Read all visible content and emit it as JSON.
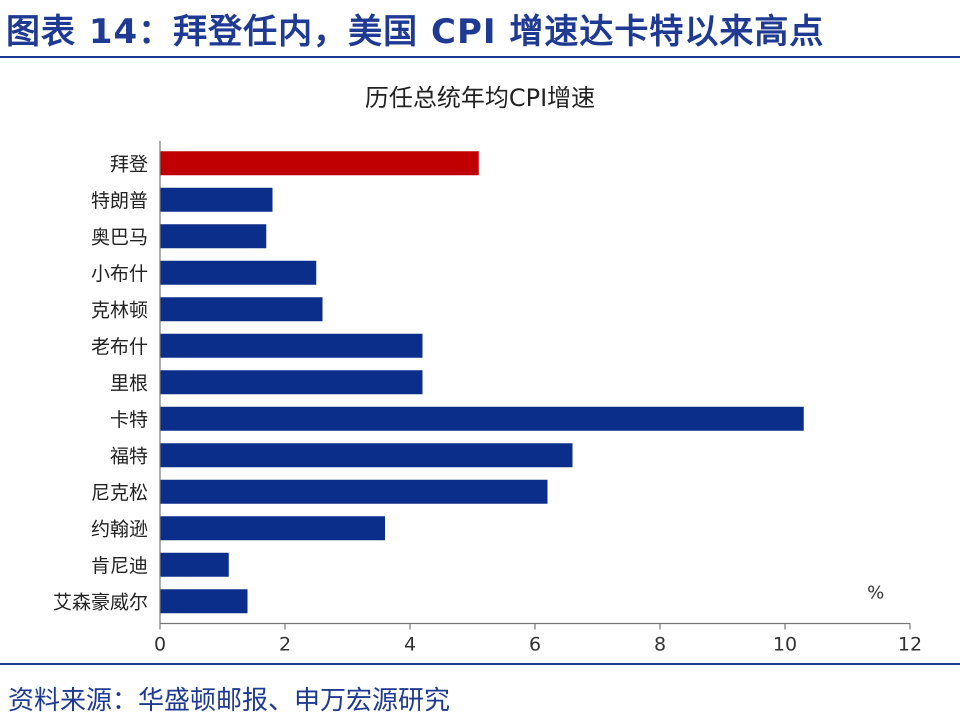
{
  "header": {
    "title": "图表 14：拜登任内，美国 CPI 增速达卡特以来高点"
  },
  "footer": {
    "source": "资料来源：华盛顿邮报、申万宏源研究"
  },
  "colors": {
    "highlight": "#c00000",
    "bar": "#0b2e8a",
    "accent": "#1f3a93"
  },
  "chart_data": {
    "type": "bar",
    "orientation": "horizontal",
    "title": "历任总统年均CPI增速",
    "unit_label": "%",
    "categories": [
      "拜登",
      "特朗普",
      "奥巴马",
      "小布什",
      "克林顿",
      "老布什",
      "里根",
      "卡特",
      "福特",
      "尼克松",
      "约翰逊",
      "肯尼迪",
      "艾森豪威尔"
    ],
    "values": [
      5.1,
      1.8,
      1.7,
      2.5,
      2.6,
      4.2,
      4.2,
      10.3,
      6.6,
      6.2,
      3.6,
      1.1,
      1.4
    ],
    "highlight_index": 0,
    "xlim": [
      0,
      12
    ],
    "xticks": [
      0,
      2,
      4,
      6,
      8,
      10,
      12
    ],
    "grid": false
  }
}
